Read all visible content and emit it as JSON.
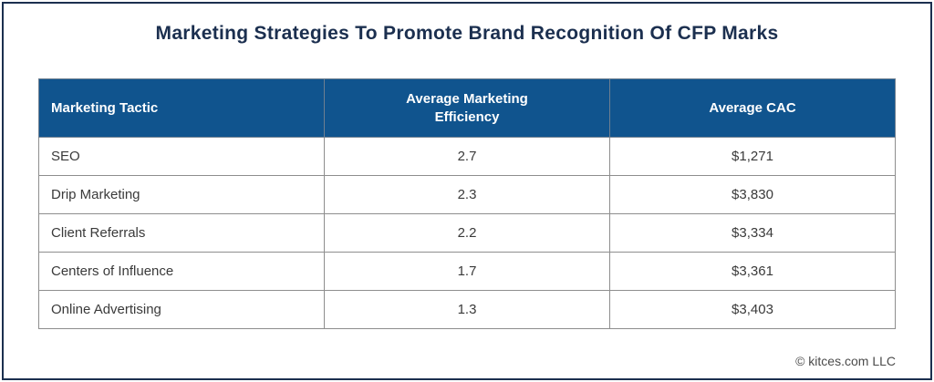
{
  "page": {
    "title": "Marketing Strategies To Promote Brand Recognition Of CFP Marks",
    "footer_credit": "© kitces.com LLC"
  },
  "colors": {
    "frame_navy": "#1b2f4f",
    "title_navy": "#1b2f4f",
    "header_blue": "#10548e",
    "header_text": "#ffffff",
    "grid_gray": "#8e8e8e",
    "body_text": "#3a3a3a",
    "footer_text": "#4b4b4b"
  },
  "chart_data": {
    "type": "table",
    "title": "Marketing Strategies To Promote Brand Recognition Of CFP Marks",
    "columns": [
      "Marketing Tactic",
      "Average Marketing\nEfficiency",
      "Average CAC"
    ],
    "rows": [
      [
        "SEO",
        "2.7",
        "$1,271"
      ],
      [
        "Drip Marketing",
        "2.3",
        "$3,830"
      ],
      [
        "Client Referrals",
        "2.2",
        "$3,334"
      ],
      [
        "Centers of Influence",
        "1.7",
        "$3,361"
      ],
      [
        "Online Advertising",
        "1.3",
        "$3,403"
      ]
    ],
    "layout_hints": {
      "column_alignment": [
        "left",
        "center",
        "center"
      ],
      "header_background": "#10548e",
      "equal_column_widths": true
    }
  }
}
